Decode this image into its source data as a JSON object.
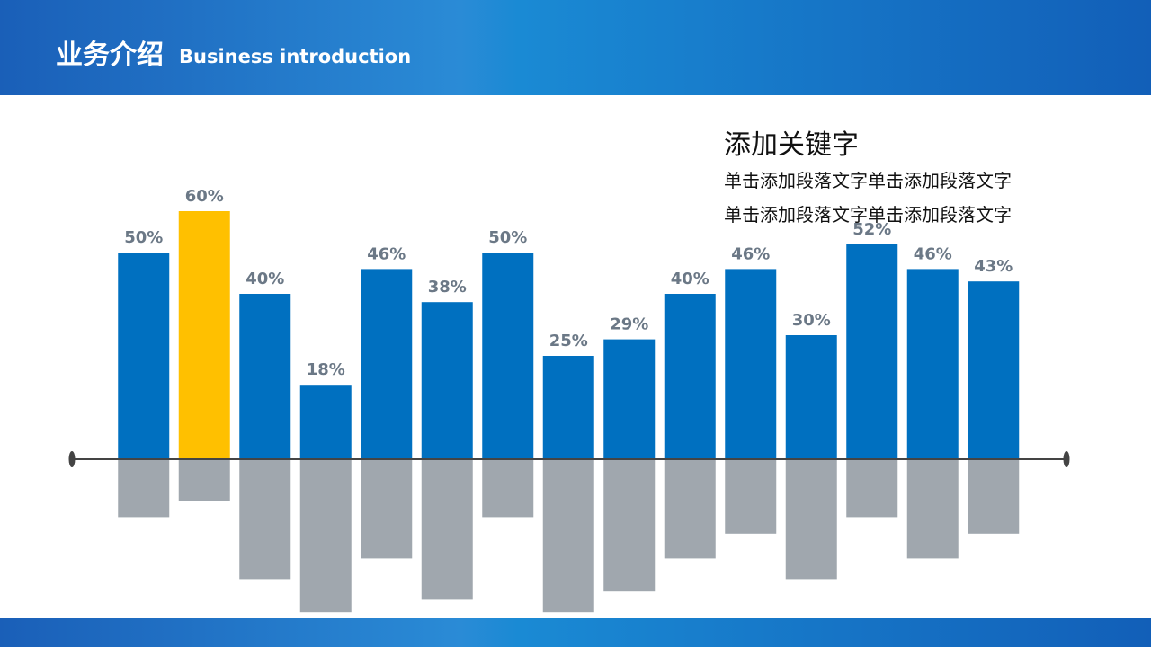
{
  "header": {
    "title": "业务介绍",
    "subtitle": "Business introduction"
  },
  "text_block": {
    "heading": "添加关键字",
    "lines": [
      "单击添加段落文字单击添加段落文字",
      "单击添加段落文字单击添加段落文字"
    ]
  },
  "chart_data": {
    "type": "bar",
    "categories": [
      null,
      null,
      null,
      null,
      null,
      null,
      null,
      null,
      null,
      null,
      null,
      null,
      null,
      null,
      null
    ],
    "series": [
      {
        "color": "#0070c0",
        "highlight_index": 1,
        "highlight_color": "#ffc000",
        "values": [
          50,
          60,
          40,
          18,
          46,
          38,
          50,
          25,
          29,
          40,
          46,
          30,
          52,
          46,
          43
        ],
        "value_labels": [
          "50%",
          "60%",
          "40%",
          "18%",
          "46%",
          "38%",
          "50%",
          "25%",
          "29%",
          "40%",
          "46%",
          "30%",
          "52%",
          "46%",
          "43%"
        ]
      },
      {
        "color": "#a0a7ae",
        "values": [
          -14,
          -10,
          -29,
          -37,
          -24,
          -34,
          -14,
          -37,
          -32,
          -24,
          -18,
          -29,
          -14,
          -24,
          -18
        ]
      }
    ],
    "ylim": [
      -40,
      65
    ]
  }
}
